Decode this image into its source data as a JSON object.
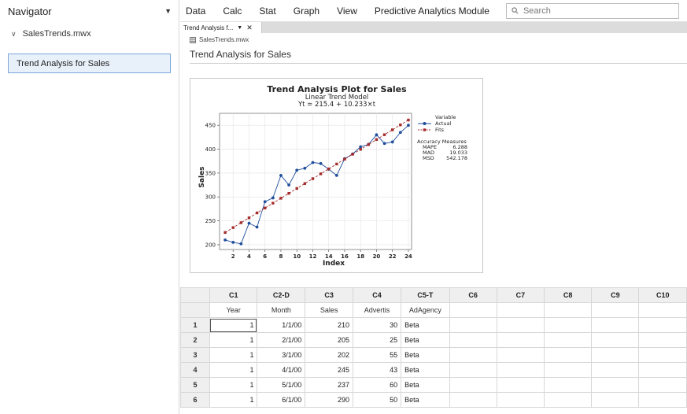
{
  "navigator": {
    "title": "Navigator",
    "project": "SalesTrends.mwx",
    "items": [
      {
        "label": "Trend Analysis for Sales",
        "selected": true
      }
    ]
  },
  "menubar": {
    "items": [
      "Data",
      "Calc",
      "Stat",
      "Graph",
      "View",
      "Predictive Analytics Module"
    ],
    "search_placeholder": "Search"
  },
  "tab": {
    "label": "Trend Analysis f..."
  },
  "output": {
    "file": "SalesTrends.mwx",
    "title": "Trend Analysis for Sales"
  },
  "chart_data": {
    "type": "line",
    "title": "Trend Analysis Plot for Sales",
    "subtitle": "Linear Trend Model",
    "equation": "Yt = 215.4 + 10.233×t",
    "xlabel": "Index",
    "ylabel": "Sales",
    "xlim": [
      0.3,
      24.4
    ],
    "ylim": [
      190,
      475
    ],
    "xticks": [
      2,
      4,
      6,
      8,
      10,
      12,
      14,
      16,
      18,
      20,
      22,
      24
    ],
    "yticks": [
      200,
      250,
      300,
      350,
      400,
      450
    ],
    "grid": true,
    "legend": {
      "title": "Variable",
      "placement": "right",
      "entries": [
        {
          "name": "Actual",
          "color": "#1f4e9c",
          "marker": "circle"
        },
        {
          "name": "Fits",
          "color": "#a52a2a",
          "marker": "square"
        }
      ]
    },
    "accuracy": {
      "title": "Accuracy Measures",
      "rows": [
        {
          "name": "MAPE",
          "value": "6.288"
        },
        {
          "name": "MAD",
          "value": "19.033"
        },
        {
          "name": "MSD",
          "value": "542.178"
        }
      ]
    },
    "series": [
      {
        "name": "Actual",
        "color": "#1f4e9c",
        "x": [
          1,
          2,
          3,
          4,
          5,
          6,
          7,
          8,
          9,
          10,
          11,
          12,
          13,
          14,
          15,
          16,
          17,
          18,
          19,
          20,
          21,
          22,
          23,
          24
        ],
        "values": [
          210,
          205,
          202,
          245,
          237,
          290,
          298,
          345,
          325,
          356,
          360,
          372,
          370,
          358,
          345,
          380,
          390,
          405,
          410,
          430,
          412,
          415,
          435,
          450
        ]
      },
      {
        "name": "Fits",
        "color": "#a52a2a",
        "x": [
          1,
          2,
          3,
          4,
          5,
          6,
          7,
          8,
          9,
          10,
          11,
          12,
          13,
          14,
          15,
          16,
          17,
          18,
          19,
          20,
          21,
          22,
          23,
          24
        ],
        "values": [
          225.6,
          235.9,
          246.1,
          256.3,
          266.6,
          276.8,
          287.0,
          297.3,
          307.5,
          317.7,
          328.0,
          338.2,
          348.4,
          358.7,
          368.9,
          379.1,
          389.4,
          399.6,
          409.8,
          420.1,
          430.3,
          440.5,
          450.8,
          461.0
        ]
      }
    ]
  },
  "worksheet": {
    "columns": [
      {
        "id": "C1",
        "name": "Year"
      },
      {
        "id": "C2-D",
        "name": "Month"
      },
      {
        "id": "C3",
        "name": "Sales"
      },
      {
        "id": "C4",
        "name": "Advertis"
      },
      {
        "id": "C5-T",
        "name": "AdAgency"
      },
      {
        "id": "C6",
        "name": ""
      },
      {
        "id": "C7",
        "name": ""
      },
      {
        "id": "C8",
        "name": ""
      },
      {
        "id": "C9",
        "name": ""
      },
      {
        "id": "C10",
        "name": ""
      }
    ],
    "rows": [
      {
        "n": "1",
        "cells": [
          "1",
          "1/1/00",
          "210",
          "30",
          "Beta"
        ]
      },
      {
        "n": "2",
        "cells": [
          "1",
          "2/1/00",
          "205",
          "25",
          "Beta"
        ]
      },
      {
        "n": "3",
        "cells": [
          "1",
          "3/1/00",
          "202",
          "55",
          "Beta"
        ]
      },
      {
        "n": "4",
        "cells": [
          "1",
          "4/1/00",
          "245",
          "43",
          "Beta"
        ]
      },
      {
        "n": "5",
        "cells": [
          "1",
          "5/1/00",
          "237",
          "60",
          "Beta"
        ]
      },
      {
        "n": "6",
        "cells": [
          "1",
          "6/1/00",
          "290",
          "50",
          "Beta"
        ]
      }
    ]
  }
}
